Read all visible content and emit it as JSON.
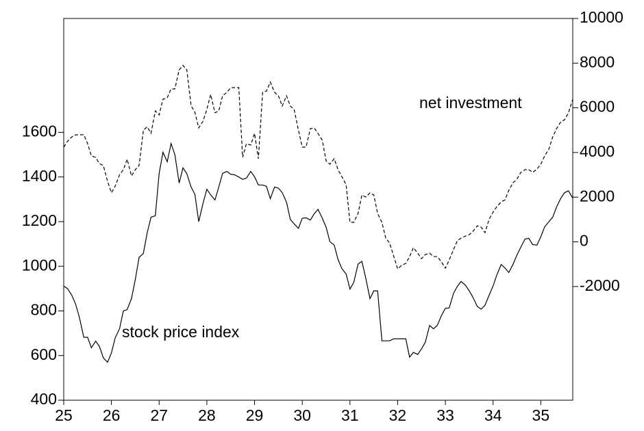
{
  "chart_data": {
    "type": "line",
    "annotations": [
      "stock price index",
      "net investment"
    ],
    "x": [
      25,
      25.08,
      25.17,
      25.25,
      25.33,
      25.42,
      25.5,
      25.58,
      25.67,
      25.75,
      25.83,
      25.92,
      26,
      26.08,
      26.17,
      26.25,
      26.33,
      26.42,
      26.5,
      26.58,
      26.67,
      26.75,
      26.83,
      26.92,
      27,
      27.08,
      27.17,
      27.25,
      27.33,
      27.42,
      27.5,
      27.58,
      27.67,
      27.75,
      27.83,
      27.92,
      28,
      28.08,
      28.17,
      28.25,
      28.33,
      28.42,
      28.5,
      28.58,
      28.67,
      28.75,
      28.83,
      28.92,
      29,
      29.08,
      29.17,
      29.25,
      29.33,
      29.42,
      29.5,
      29.58,
      29.67,
      29.75,
      29.83,
      29.92,
      30,
      30.08,
      30.17,
      30.25,
      30.33,
      30.42,
      30.5,
      30.58,
      30.67,
      30.75,
      30.83,
      30.92,
      31,
      31.08,
      31.17,
      31.25,
      31.33,
      31.42,
      31.5,
      31.58,
      31.67,
      31.75,
      31.83,
      31.92,
      32,
      32.08,
      32.17,
      32.25,
      32.33,
      32.42,
      32.5,
      32.58,
      32.67,
      32.75,
      32.83,
      32.92,
      33,
      33.08,
      33.17,
      33.25,
      33.33,
      33.42,
      33.5,
      33.58,
      33.67,
      33.75,
      33.83,
      33.92,
      34,
      34.08,
      34.17,
      34.25,
      34.33,
      34.42,
      34.5,
      34.58,
      34.67,
      34.75,
      34.83,
      34.92,
      35,
      35.08,
      35.17,
      35.25,
      35.33,
      35.42,
      35.5,
      35.58,
      35.67
    ],
    "series": [
      {
        "name": "stock price index",
        "color": "#000000",
        "style": "solid",
        "axis": "y",
        "values": [
          911,
          900,
          870,
          830,
          770,
          682,
          682,
          635,
          665,
          640,
          590,
          570,
          612,
          680,
          720,
          800,
          806,
          855,
          940,
          1040,
          1058,
          1150,
          1220,
          1226,
          1415,
          1511,
          1468,
          1550,
          1500,
          1373,
          1441,
          1415,
          1355,
          1322,
          1200,
          1282,
          1345,
          1320,
          1297,
          1355,
          1416,
          1425,
          1412,
          1410,
          1400,
          1389,
          1395,
          1425,
          1401,
          1364,
          1364,
          1358,
          1303,
          1355,
          1350,
          1330,
          1287,
          1210,
          1190,
          1170,
          1215,
          1217,
          1207,
          1235,
          1255,
          1215,
          1175,
          1110,
          1095,
          1030,
          990,
          965,
          898,
          928,
          1010,
          1022,
          948,
          855,
          890,
          890,
          666,
          666,
          666,
          675,
          675,
          675,
          675,
          593,
          614,
          605,
          630,
          660,
          735,
          720,
          735,
          780,
          812,
          813,
          878,
          910,
          932,
          915,
          890,
          860,
          820,
          808,
          825,
          872,
          912,
          962,
          1008,
          992,
          972,
          1010,
          1050,
          1085,
          1122,
          1125,
          1097,
          1095,
          1132,
          1176,
          1200,
          1220,
          1265,
          1305,
          1330,
          1338,
          1305
        ]
      },
      {
        "name": "net investment",
        "color": "#000000",
        "style": "dashed",
        "axis": "y2",
        "values": [
          4242,
          4500,
          4700,
          4790,
          4793,
          4800,
          4400,
          3850,
          3780,
          3500,
          3420,
          2700,
          2200,
          2500,
          3000,
          3231,
          3700,
          2950,
          3231,
          3420,
          5000,
          5150,
          4860,
          5860,
          5680,
          6386,
          6450,
          6845,
          6845,
          7700,
          7900,
          7700,
          6100,
          5800,
          5100,
          5405,
          5926,
          6600,
          5780,
          5860,
          6539,
          6692,
          6900,
          6906,
          6906,
          3782,
          4395,
          4334,
          4854,
          3721,
          6692,
          6753,
          7151,
          6692,
          6539,
          6079,
          6539,
          6079,
          5926,
          5000,
          4242,
          4242,
          5068,
          5099,
          4854,
          4548,
          3629,
          3476,
          3721,
          3231,
          2924,
          2557,
          872,
          872,
          1270,
          2097,
          2006,
          2190,
          2097,
          1270,
          872,
          168,
          -47,
          -660,
          -1211,
          -1057,
          -966,
          -660,
          -261,
          -507,
          -752,
          -568,
          -507,
          -660,
          -660,
          -905,
          -1180,
          -813,
          -353,
          45,
          168,
          260,
          321,
          474,
          719,
          658,
          413,
          1025,
          1331,
          1577,
          1791,
          1883,
          2312,
          2649,
          2802,
          3108,
          3231,
          3231,
          3108,
          3261,
          3476,
          3843,
          4150,
          4701,
          5068,
          5375,
          5467,
          5773,
          6386
        ]
      }
    ],
    "xlim": [
      25,
      35.67
    ],
    "xticks": [
      25,
      26,
      27,
      28,
      29,
      30,
      31,
      32,
      33,
      34,
      35
    ],
    "ylim": [
      400,
      2110
    ],
    "yticks": [
      400,
      600,
      800,
      1000,
      1200,
      1400,
      1600
    ],
    "y2lim": [
      -7090,
      10000
    ],
    "y2ticks": [
      -2000,
      0,
      2000,
      4000,
      6000,
      8000,
      10000
    ],
    "grid": false
  }
}
